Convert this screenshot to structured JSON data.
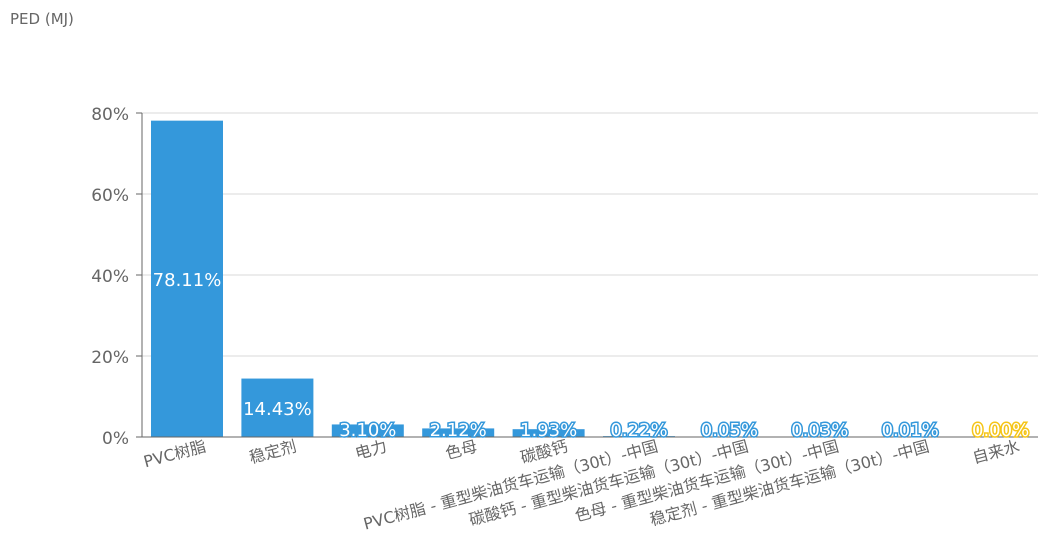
{
  "chart_data": {
    "type": "bar",
    "title": "PED (MJ)",
    "categories": [
      "PVC树脂",
      "稳定剂",
      "电力",
      "色母",
      "碳酸钙",
      "PVC树脂 - 重型柴油货车运输（30t）-中国",
      "碳酸钙 - 重型柴油货车运输（30t）-中国",
      "色母 - 重型柴油货车运输（30t）-中国",
      "稳定剂 - 重型柴油货车运输（30t）-中国",
      "自来水"
    ],
    "values": [
      78.11,
      14.43,
      3.1,
      2.12,
      1.93,
      0.22,
      0.05,
      0.03,
      0.01,
      0.0
    ],
    "data_labels": [
      "78.11%",
      "14.43%",
      "3.10%",
      "2.12%",
      "1.93%",
      "0.22%",
      "0.05%",
      "0.03%",
      "0.01%",
      "0.00%"
    ],
    "bar_colors": [
      "#3498db",
      "#3498db",
      "#3498db",
      "#3498db",
      "#3498db",
      "#3498db",
      "#3498db",
      "#3498db",
      "#3498db",
      "#f5c518"
    ],
    "y_ticks": [
      "0%",
      "20%",
      "40%",
      "60%",
      "80%"
    ],
    "y_tick_values": [
      0,
      20,
      40,
      60,
      80
    ],
    "ylim": [
      0,
      80
    ],
    "grid": true,
    "legend": "none",
    "xlabel": "",
    "ylabel": "",
    "colors": {
      "axis": "#666666",
      "grid": "#d9d9d9",
      "text": "#666666"
    }
  }
}
